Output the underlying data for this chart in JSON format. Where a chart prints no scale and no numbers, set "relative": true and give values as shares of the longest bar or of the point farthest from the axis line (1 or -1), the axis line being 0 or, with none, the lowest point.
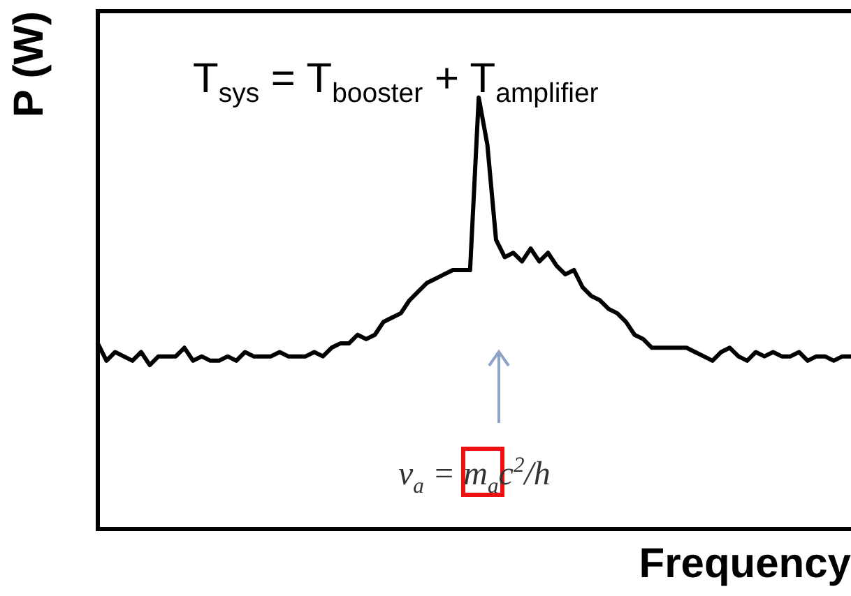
{
  "chart_data": {
    "type": "line",
    "relative": true,
    "xlabel": "Frequency",
    "ylabel": "P (W)",
    "categories": [
      null,
      null,
      null,
      null,
      null,
      null,
      null,
      null,
      null,
      null,
      null,
      null,
      null,
      null,
      null,
      null,
      null,
      null,
      null,
      null,
      null,
      null,
      null,
      null,
      null,
      null,
      null,
      null,
      null,
      null,
      null,
      null,
      null,
      null,
      null,
      null,
      null,
      null,
      null,
      null,
      null,
      null,
      null,
      null,
      null,
      null,
      null,
      null,
      null,
      null,
      null,
      null,
      null,
      null,
      null,
      null,
      null,
      null,
      null,
      null,
      null,
      null,
      null,
      null,
      null,
      null,
      null,
      null,
      null,
      null,
      null,
      null,
      null,
      null,
      null,
      null,
      null,
      null,
      null,
      null,
      null,
      null,
      null,
      null,
      null,
      null,
      null,
      null
    ],
    "series": [
      {
        "color": "#000000",
        "values": [
          0.43,
          0.39,
          0.41,
          0.4,
          0.39,
          0.41,
          0.38,
          0.4,
          0.4,
          0.4,
          0.42,
          0.39,
          0.4,
          0.39,
          0.39,
          0.4,
          0.39,
          0.41,
          0.4,
          0.4,
          0.4,
          0.41,
          0.4,
          0.4,
          0.4,
          0.41,
          0.4,
          0.42,
          0.43,
          0.43,
          0.45,
          0.44,
          0.45,
          0.48,
          0.49,
          0.5,
          0.53,
          0.55,
          0.57,
          0.58,
          0.59,
          0.6,
          0.6,
          0.6,
          1,
          0.89,
          0.67,
          0.63,
          0.64,
          0.62,
          0.65,
          0.62,
          0.64,
          0.61,
          0.59,
          0.6,
          0.56,
          0.54,
          0.53,
          0.51,
          0.5,
          0.48,
          0.45,
          0.44,
          0.42,
          0.42,
          0.42,
          0.42,
          0.42,
          0.41,
          0.4,
          0.39,
          0.41,
          0.42,
          0.4,
          0.39,
          0.41,
          0.4,
          0.41,
          0.4,
          0.4,
          0.41,
          0.39,
          0.4,
          0.4,
          0.39,
          0.4,
          0.4
        ]
      }
    ],
    "annotations": [
      "T$_{sys}$ = T$_{booster}$ + T$_{amplifier}$",
      "ν$_{a}$ = m$_{a}$c$^{2}$/h"
    ],
    "grid": false,
    "legend": false,
    "marker": "none",
    "line_style": "solid"
  }
}
